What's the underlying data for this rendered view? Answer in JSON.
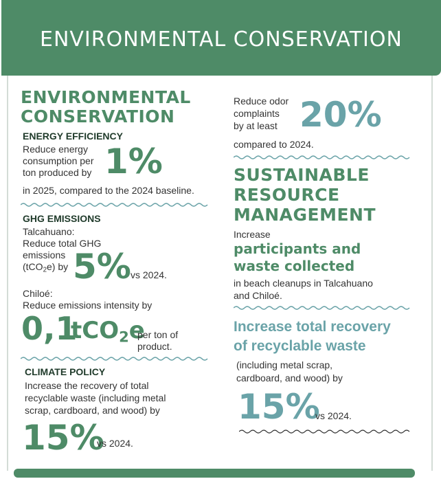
{
  "banner": {
    "title": "ENVIRONMENTAL CONSERVATION"
  },
  "left": {
    "section_title_line1": "ENVIRONMENTAL",
    "section_title_line2": "CONSERVATION",
    "energy": {
      "heading": "ENERGY EFFICIENCY",
      "line1": "Reduce energy",
      "line2": "consumption per",
      "line3": "ton produced by",
      "value": "1%",
      "line4": "in 2025, compared to the 2024 baseline."
    },
    "ghg": {
      "heading": "GHG EMISSIONS",
      "site1": "Talcahuano:",
      "line1": "Reduce total GHG",
      "line2": "emissions",
      "line3_pre": "(tCO",
      "line3_sub": "2",
      "line3_post": "e) by",
      "value": "5%",
      "vs": "vs 2024.",
      "site2": "Chiloé:",
      "line4": "Reduce emissions intensity by",
      "intensity_value": "0,1",
      "intensity_unit_pre": "tCO",
      "intensity_unit_sub": "2",
      "intensity_unit_post": "e",
      "per_ton_line1": "per ton of",
      "per_ton_line2": "product."
    },
    "climate": {
      "heading": "CLIMATE POLICY",
      "line1": "Increase the recovery of total",
      "line2": "recyclable waste (including metal",
      "line3": "scrap, cardboard, and wood) by",
      "value": "15%",
      "vs": "vs 2024."
    }
  },
  "right": {
    "odor": {
      "line1": "Reduce odor",
      "line2": "complaints",
      "line3": "by at least",
      "value": "20%",
      "line4": "compared to 2024."
    },
    "section_title_line1": "SUSTAINABLE",
    "section_title_line2": "RESOURCE",
    "section_title_line3": "MANAGEMENT",
    "cleanup": {
      "line1": "Increase",
      "highlight1": "participants and",
      "highlight2": "waste collected",
      "line2": "in beach cleanups in Talcahuano",
      "line3": "and Chiloé."
    },
    "recovery": {
      "heading1": "Increase total recovery",
      "heading2": "of recyclable waste",
      "line1": "(including metal scrap,",
      "line2": "cardboard, and wood) by",
      "value": "15%",
      "vs": "vs 2024."
    }
  },
  "colors": {
    "brand_green": "#4e8b67",
    "teal": "#6aa3a8",
    "dark_text": "#1f3a2a",
    "body_text": "#333333"
  }
}
